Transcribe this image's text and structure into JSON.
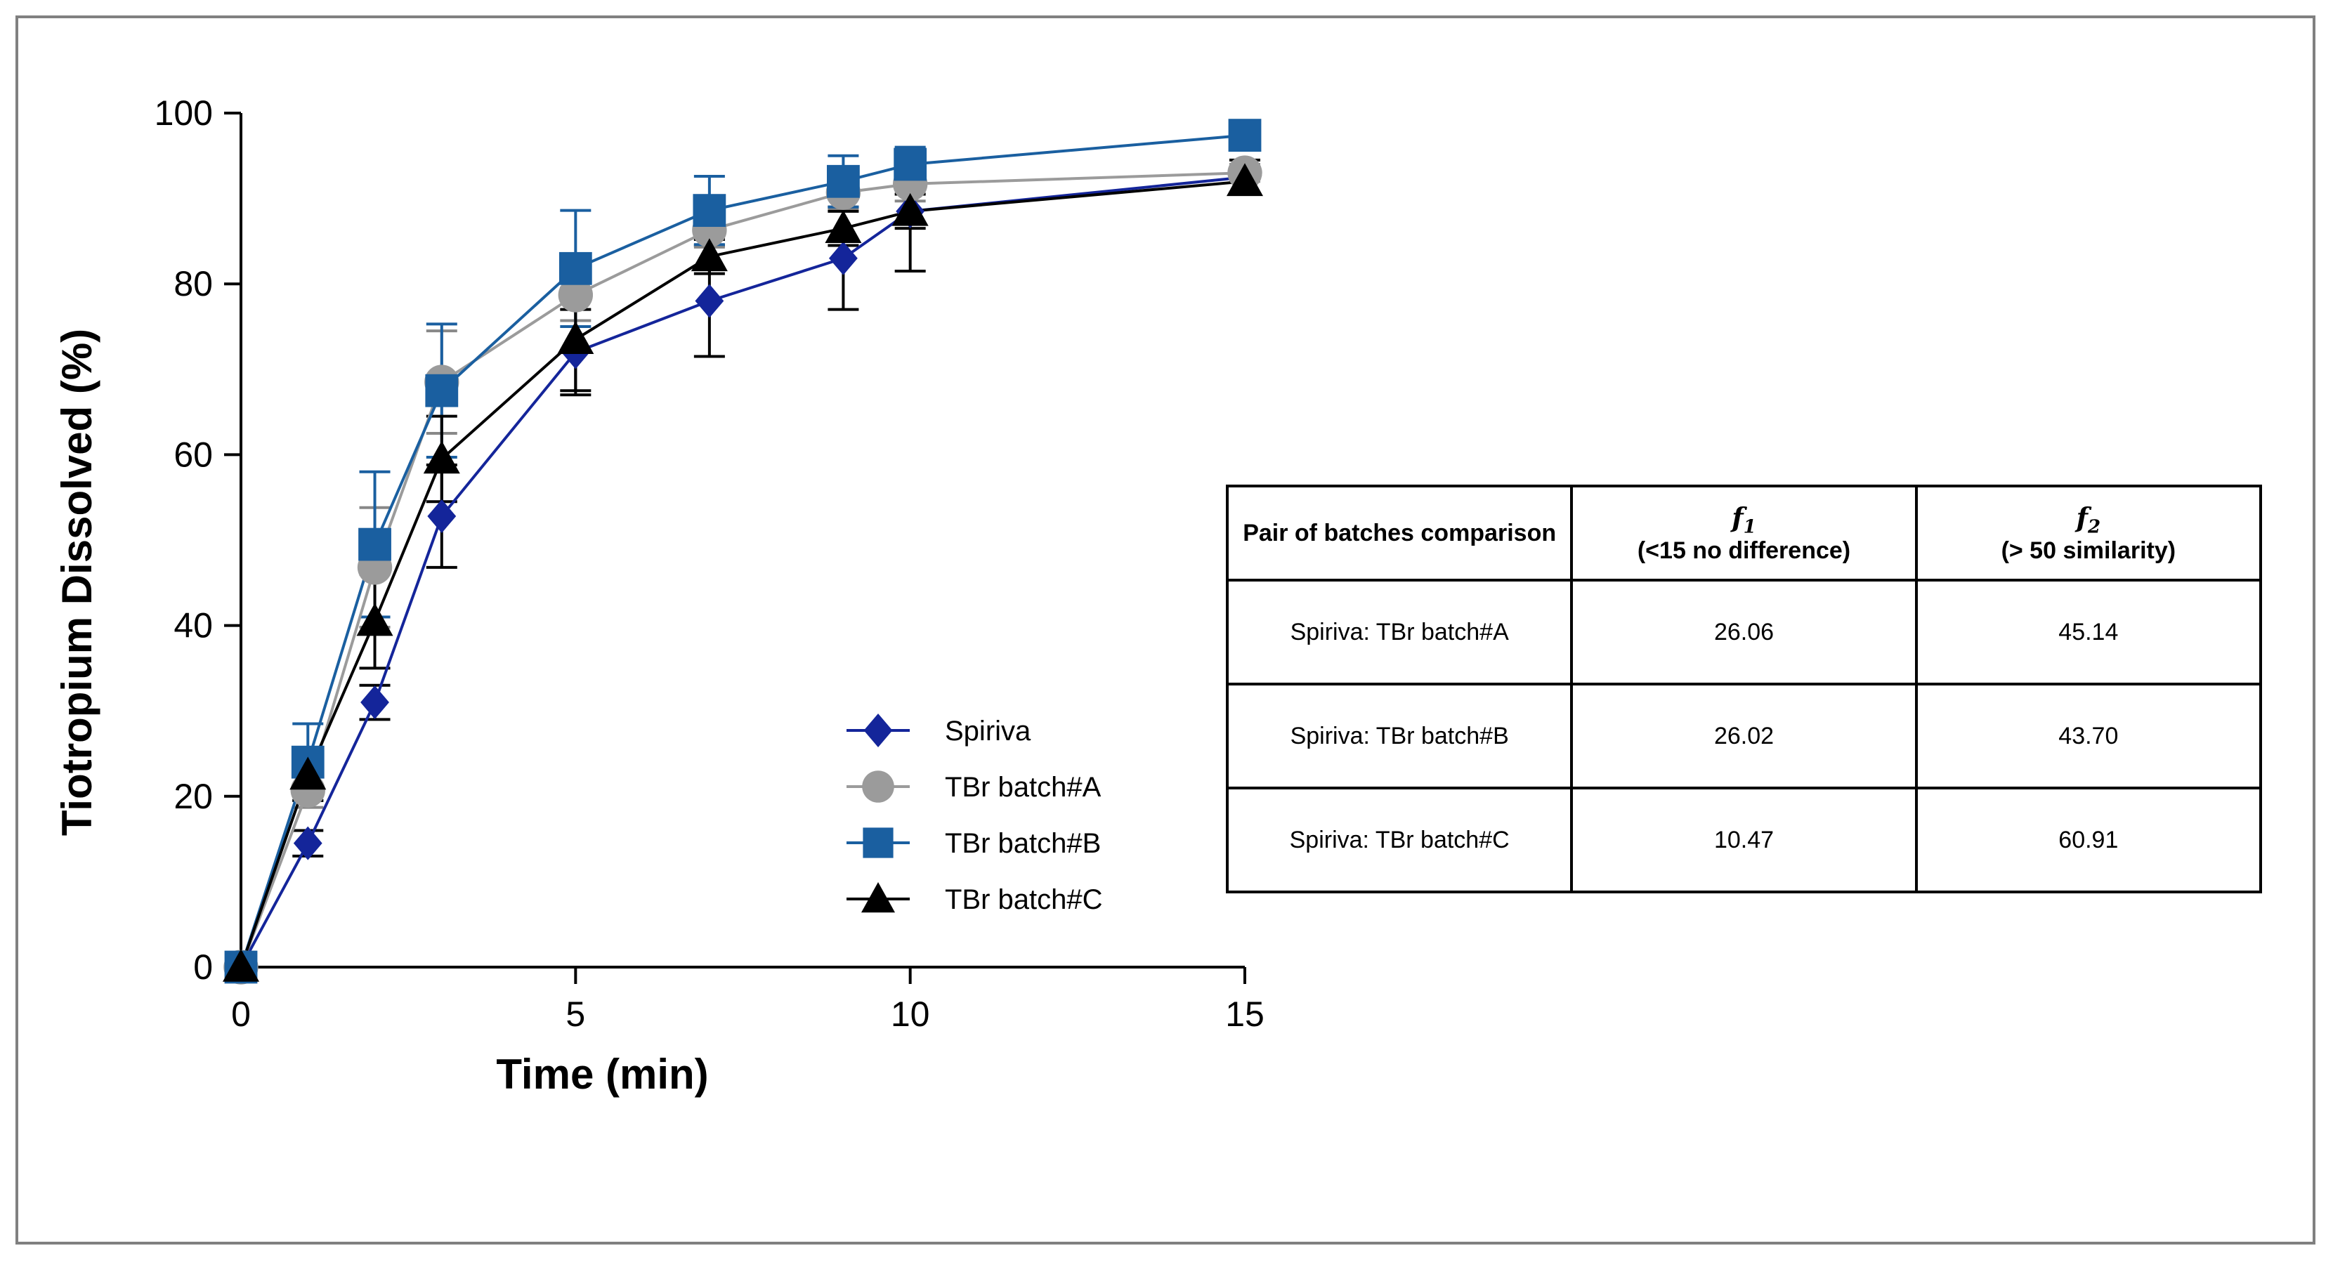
{
  "chart_data": {
    "type": "line",
    "xlabel": "Time (min)",
    "ylabel": "Tiotropium Dissolved  (%)",
    "xlim": [
      0,
      15
    ],
    "ylim": [
      0,
      100
    ],
    "xticks": [
      0,
      5,
      10,
      15
    ],
    "yticks": [
      0,
      20,
      40,
      60,
      80,
      100
    ],
    "legend_position": "center-bottom",
    "x": [
      0,
      1,
      2,
      3,
      5,
      7,
      9,
      10,
      15
    ],
    "series": [
      {
        "name": "Spiriva",
        "marker": "diamond",
        "color": "#14259a",
        "values": [
          0,
          14.5,
          31,
          52.8,
          72,
          78,
          83,
          88.5,
          92.5
        ],
        "errors": [
          0,
          1.5,
          2,
          6,
          5,
          6.5,
          6,
          7,
          2
        ]
      },
      {
        "name": "TBr batch#A",
        "marker": "circle",
        "color": "#9b9b9b",
        "values": [
          0,
          20.7,
          46.8,
          68.5,
          78.7,
          86.3,
          90.7,
          91.7,
          93
        ],
        "errors": [
          0,
          2,
          7,
          6,
          3,
          2,
          2,
          2,
          1
        ]
      },
      {
        "name": "TBr batch#B",
        "marker": "square",
        "color": "#1a5fa0",
        "values": [
          0,
          24,
          49.5,
          67.5,
          81.8,
          88.6,
          92,
          94,
          97.4
        ],
        "errors": [
          0,
          4.5,
          8.5,
          7.8,
          6.8,
          4,
          3,
          2,
          1
        ]
      },
      {
        "name": "TBr batch#C",
        "marker": "triangle",
        "color": "#000000",
        "values": [
          0,
          22.5,
          40.5,
          59.5,
          73.5,
          83.2,
          86.5,
          88.5,
          92
        ],
        "errors": [
          0,
          3,
          5.5,
          5,
          6,
          2,
          2,
          2,
          1.5
        ]
      }
    ]
  },
  "table": {
    "header": {
      "col1": "Pair of batches comparison",
      "col2_symbol": "f",
      "col2_sub": "1",
      "col2_criterion": "(<15 no difference)",
      "col3_symbol": "f",
      "col3_sub": "2",
      "col3_criterion": "(> 50 similarity)"
    },
    "rows": [
      {
        "pair": "Spiriva: TBr batch#A",
        "f1": "26.06",
        "f2": "45.14"
      },
      {
        "pair": "Spiriva: TBr batch#B",
        "f1": "26.02",
        "f2": "43.70"
      },
      {
        "pair": "Spiriva: TBr batch#C",
        "f1": "10.47",
        "f2": "60.91"
      }
    ]
  }
}
